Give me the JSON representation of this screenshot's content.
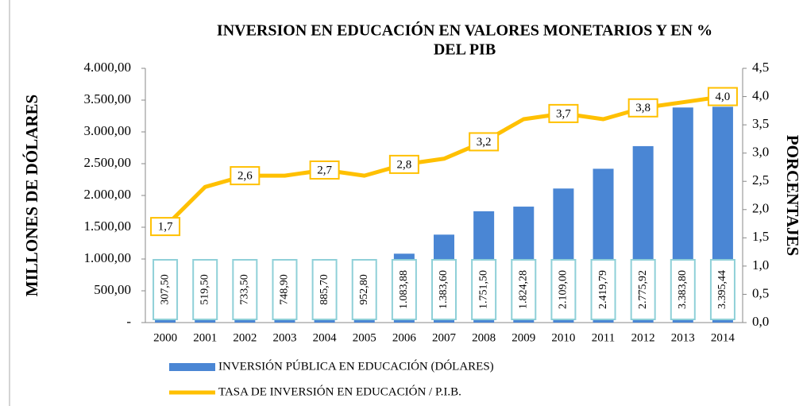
{
  "chart_data": {
    "type": "bar_line",
    "title": [
      "INVERSION EN EDUCACIÓN EN VALORES MONETARIOS Y EN %",
      "DEL PIB"
    ],
    "y_label": "MILLONES DE DÓLARES",
    "y2_label": "PORCENTAJES",
    "categories": [
      "2000",
      "2001",
      "2002",
      "2003",
      "2004",
      "2005",
      "2006",
      "2007",
      "2008",
      "2009",
      "2010",
      "2011",
      "2012",
      "2013",
      "2014"
    ],
    "series": [
      {
        "name": "INVERSIÓN PÚBLICA EN EDUCACIÓN (DÓLARES)",
        "color": "#4a86d4",
        "type": "bar",
        "values": [
          307.5,
          519.5,
          733.5,
          748.9,
          885.7,
          952.8,
          1083.88,
          1383.6,
          1751.5,
          1824.28,
          2109.0,
          2419.79,
          2775.92,
          3383.8,
          3395.44
        ],
        "value_labels": [
          "307,50",
          "519,50",
          "733,50",
          "748,90",
          "885,70",
          "952,80",
          "1.083,88",
          "1.383,60",
          "1.751,50",
          "1.824,28",
          "2.109,00",
          "2.419,79",
          "2.775,92",
          "3.383,80",
          "3.395,44"
        ]
      },
      {
        "name": "TASA DE INVERSIÓN EN EDUCACIÓN / P.I.B.",
        "color": "#ffc000",
        "type": "line",
        "axis": "y2",
        "values": [
          1.7,
          2.4,
          2.6,
          2.6,
          2.7,
          2.6,
          2.8,
          2.9,
          3.2,
          3.6,
          3.7,
          3.6,
          3.8,
          3.9,
          4.0
        ],
        "value_labels": [
          "1,7",
          null,
          "2,6",
          null,
          "2,7",
          null,
          "2,8",
          null,
          "3,2",
          null,
          "3,7",
          null,
          "3,8",
          null,
          "4,0"
        ]
      }
    ],
    "ylim": [
      0,
      4000
    ],
    "yticks": [
      {
        "value": 0,
        "label": "-"
      },
      {
        "value": 500,
        "label": "500,00"
      },
      {
        "value": 1000,
        "label": "1.000,00"
      },
      {
        "value": 1500,
        "label": "1.500,00"
      },
      {
        "value": 2000,
        "label": "2.000,00"
      },
      {
        "value": 2500,
        "label": "2.500,00"
      },
      {
        "value": 3000,
        "label": "3.000,00"
      },
      {
        "value": 3500,
        "label": "3.500,00"
      },
      {
        "value": 4000,
        "label": "4.000,00"
      }
    ],
    "y2lim": [
      0,
      4.5
    ],
    "y2ticks": [
      {
        "value": 0,
        "label": "0,0"
      },
      {
        "value": 0.5,
        "label": "0,5"
      },
      {
        "value": 1,
        "label": "1,0"
      },
      {
        "value": 1.5,
        "label": "1,5"
      },
      {
        "value": 2,
        "label": "2,0"
      },
      {
        "value": 2.5,
        "label": "2,5"
      },
      {
        "value": 3,
        "label": "3,0"
      },
      {
        "value": 3.5,
        "label": "3,5"
      },
      {
        "value": 4,
        "label": "4,0"
      },
      {
        "value": 4.5,
        "label": "4,5"
      }
    ],
    "grid": false
  }
}
